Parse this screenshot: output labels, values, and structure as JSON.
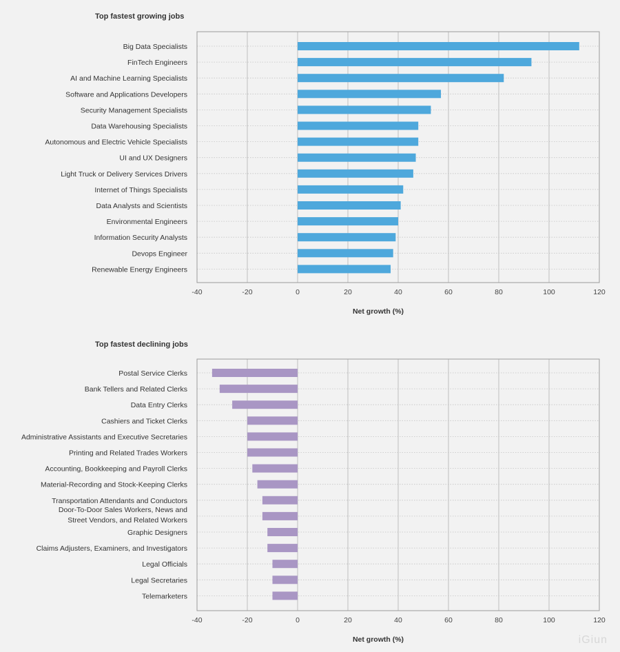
{
  "colors": {
    "growing": "#4ea8dc",
    "declining": "#a996c4",
    "grid": "#b9b9b9",
    "frame": "#9a9a9a"
  },
  "watermark": "iGiun",
  "chart_data": [
    {
      "type": "bar",
      "orientation": "horizontal",
      "title": "Top fastest growing jobs",
      "xlabel": "Net growth (%)",
      "xlim": [
        -40,
        120
      ],
      "xticks": [
        -40,
        -20,
        0,
        20,
        40,
        60,
        80,
        100,
        120
      ],
      "grid": true,
      "categories": [
        "Big Data Specialists",
        "FinTech Engineers",
        "AI and Machine Learning Specialists",
        "Software and Applications Developers",
        "Security Management Specialists",
        "Data Warehousing Specialists",
        "Autonomous and Electric Vehicle Specialists",
        "UI and UX Designers",
        "Light Truck or Delivery Services Drivers",
        "Internet of Things Specialists",
        "Data Analysts and Scientists",
        "Environmental Engineers",
        "Information Security Analysts",
        "Devops Engineer",
        "Renewable Energy Engineers"
      ],
      "values": [
        112,
        93,
        82,
        57,
        53,
        48,
        48,
        47,
        46,
        42,
        41,
        40,
        39,
        38,
        37
      ]
    },
    {
      "type": "bar",
      "orientation": "horizontal",
      "title": "Top fastest declining jobs",
      "xlabel": "Net growth (%)",
      "xlim": [
        -40,
        120
      ],
      "xticks": [
        -40,
        -20,
        0,
        20,
        40,
        60,
        80,
        100,
        120
      ],
      "grid": true,
      "categories": [
        "Postal Service Clerks",
        "Bank Tellers and Related Clerks",
        "Data Entry Clerks",
        "Cashiers and Ticket Clerks",
        "Administrative Assistants and Executive Secretaries",
        "Printing and Related Trades Workers",
        "Accounting, Bookkeeping and Payroll Clerks",
        "Material-Recording and Stock-Keeping Clerks",
        "Transportation Attendants and Conductors",
        "Door-To-Door Sales Workers, News and Street Vendors, and Related Workers",
        "Graphic Designers",
        "Claims Adjusters, Examiners, and Investigators",
        "Legal Officials",
        "Legal Secretaries",
        "Telemarketers"
      ],
      "category_lines": [
        [
          "Postal Service Clerks"
        ],
        [
          "Bank Tellers and Related Clerks"
        ],
        [
          "Data Entry Clerks"
        ],
        [
          "Cashiers and Ticket Clerks"
        ],
        [
          "Administrative Assistants and Executive Secretaries"
        ],
        [
          "Printing and Related Trades Workers"
        ],
        [
          "Accounting, Bookkeeping and Payroll Clerks"
        ],
        [
          "Material-Recording and Stock-Keeping Clerks"
        ],
        [
          "Transportation Attendants and Conductors"
        ],
        [
          "Door-To-Door Sales Workers, News and",
          "Street Vendors, and Related Workers"
        ],
        [
          "Graphic Designers"
        ],
        [
          "Claims Adjusters, Examiners, and Investigators"
        ],
        [
          "Legal Officials"
        ],
        [
          "Legal Secretaries"
        ],
        [
          "Telemarketers"
        ]
      ],
      "values": [
        -34,
        -31,
        -26,
        -20,
        -20,
        -20,
        -18,
        -16,
        -14,
        -14,
        -12,
        -12,
        -10,
        -10,
        -10
      ]
    }
  ]
}
